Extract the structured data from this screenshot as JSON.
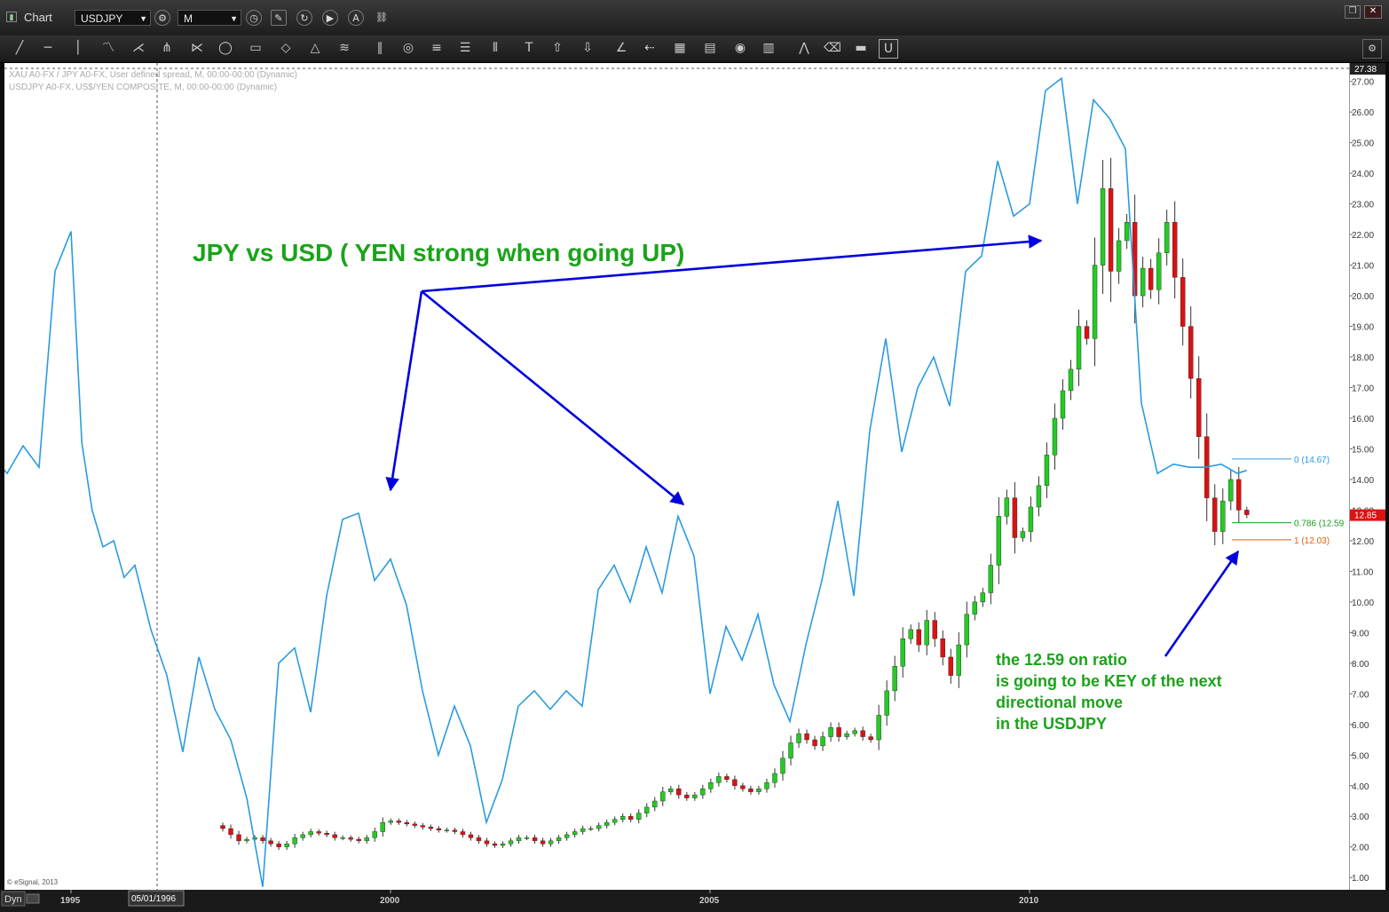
{
  "window": {
    "app_label": "Chart",
    "symbol": "USDJPY",
    "interval": "M"
  },
  "legend": {
    "line1": "XAU A0-FX / JPY A0-FX, User defined spread, M, 00:00-00:00 (Dynamic)",
    "line2": "USDJPY A0-FX, US$/YEN COMPOSITE, M, 00:00-00:00 (Dynamic)"
  },
  "annotations": {
    "headline": "JPY vs USD ( YEN strong when going UP)",
    "note_lines": [
      "the 12.59 on ratio",
      "is going to be KEY of the next",
      "directional move",
      "in the USDJPY"
    ]
  },
  "fib": {
    "level0": "0 (14.67)",
    "level786": "0.786 (12.59",
    "level1": "1 (12.03)"
  },
  "price_tags": {
    "top": "27.38",
    "last": "12.85"
  },
  "copyright": "© eSignal, 2013",
  "footer": {
    "dyn": "Dyn",
    "cursor_date": "05/01/1996"
  },
  "colors": {
    "ratio_line": "#2a9be0",
    "up_candle": "#22cc22",
    "down_candle": "#dd1111",
    "annotation_green": "#1aa31a",
    "arrow_blue": "#0000dd"
  },
  "chart_data": {
    "type": "line",
    "title": "",
    "ylim": [
      0.6,
      27.6
    ],
    "y_ticks": [
      "27.00",
      "26.00",
      "25.00",
      "24.00",
      "23.00",
      "22.00",
      "21.00",
      "20.00",
      "19.00",
      "18.00",
      "17.00",
      "16.00",
      "15.00",
      "14.00",
      "13.00",
      "12.00",
      "11.00",
      "10.00",
      "9.00",
      "8.00",
      "7.00",
      "6.00",
      "5.00",
      "4.00",
      "3.00",
      "2.00",
      "1.00"
    ],
    "x_ticks": [
      "1995",
      "2000",
      "2005",
      "2010"
    ],
    "series": [
      {
        "type": "line",
        "x": [
          1993.0,
          1993.25,
          1993.5,
          1993.75,
          1994.0,
          1994.25,
          1994.5,
          1994.75,
          1995.0,
          1995.17,
          1995.33,
          1995.5,
          1995.67,
          1995.83,
          1996.0,
          1996.25,
          1996.5,
          1996.75,
          1997.0,
          1997.25,
          1997.5,
          1997.75,
          1998.0,
          1998.25,
          1998.5,
          1998.75,
          1999.0,
          1999.25,
          1999.5,
          1999.75,
          2000.0,
          2000.25,
          2000.5,
          2000.75,
          2001.0,
          2001.25,
          2001.5,
          2001.75,
          2002.0,
          2002.25,
          2002.5,
          2002.75,
          2003.0,
          2003.25,
          2003.5,
          2003.75,
          2004.0,
          2004.25,
          2004.5,
          2004.75,
          2005.0,
          2005.25,
          2005.5,
          2005.75,
          2006.0,
          2006.25,
          2006.5,
          2006.75,
          2007.0,
          2007.25,
          2007.5,
          2007.75,
          2008.0,
          2008.25,
          2008.5,
          2008.75,
          2009.0,
          2009.25,
          2009.5,
          2009.75,
          2010.0,
          2010.25,
          2010.5,
          2010.75,
          2011.0,
          2011.25,
          2011.5,
          2011.75,
          2012.0,
          2012.25,
          2012.5,
          2012.75,
          2013.0,
          2013.25,
          2013.4
        ],
        "values": [
          9.9,
          12.4,
          14.0,
          14.8,
          14.2,
          15.1,
          14.4,
          20.8,
          22.1,
          15.2,
          13.0,
          11.8,
          12.0,
          10.8,
          11.2,
          9.1,
          7.6,
          5.1,
          8.2,
          6.5,
          5.5,
          3.6,
          0.7,
          8.0,
          8.5,
          6.4,
          10.2,
          12.7,
          12.9,
          10.7,
          11.4,
          9.9,
          7.1,
          5.0,
          6.6,
          5.3,
          2.8,
          4.2,
          6.6,
          7.1,
          6.5,
          7.1,
          6.6,
          10.4,
          11.2,
          10.0,
          11.8,
          10.3,
          12.8,
          11.5,
          7.0,
          9.2,
          8.1,
          9.6,
          7.3,
          6.1,
          8.6,
          10.7,
          13.3,
          10.2,
          15.6,
          18.6,
          14.9,
          17.0,
          18.0,
          16.4,
          20.8,
          21.3,
          24.4,
          22.6,
          23.0,
          26.7,
          27.1,
          23.0,
          26.4,
          25.8,
          24.8,
          16.5,
          14.2,
          14.5,
          14.4,
          14.4,
          14.5,
          14.2,
          14.3
        ]
      },
      {
        "type": "candlestick",
        "x_start": 1997.25,
        "x_end": 2013.4,
        "closes": [
          2.7,
          2.6,
          2.4,
          2.2,
          2.25,
          2.3,
          2.2,
          2.1,
          2.0,
          2.1,
          2.3,
          2.4,
          2.5,
          2.45,
          2.4,
          2.3,
          2.3,
          2.25,
          2.2,
          2.3,
          2.5,
          2.8,
          2.85,
          2.8,
          2.75,
          2.7,
          2.65,
          2.6,
          2.55,
          2.55,
          2.5,
          2.4,
          2.3,
          2.2,
          2.1,
          2.05,
          2.1,
          2.2,
          2.3,
          2.3,
          2.2,
          2.1,
          2.2,
          2.3,
          2.4,
          2.5,
          2.6,
          2.6,
          2.7,
          2.8,
          2.9,
          3.0,
          2.9,
          3.1,
          3.3,
          3.5,
          3.8,
          3.9,
          3.7,
          3.6,
          3.7,
          3.9,
          4.1,
          4.3,
          4.2,
          4.0,
          3.9,
          3.8,
          3.9,
          4.1,
          4.4,
          4.9,
          5.4,
          5.7,
          5.5,
          5.3,
          5.6,
          5.9,
          5.6,
          5.7,
          5.8,
          5.6,
          5.5,
          6.3,
          7.1,
          7.9,
          8.8,
          9.1,
          8.6,
          9.4,
          8.8,
          8.2,
          7.6,
          8.6,
          9.6,
          10.0,
          10.3,
          11.2,
          12.8,
          13.4,
          12.1,
          12.3,
          13.1,
          13.8,
          14.8,
          16.0,
          16.9,
          17.6,
          19.0,
          18.6,
          21.0,
          23.5,
          20.8,
          21.8,
          22.4,
          20.0,
          20.9,
          20.2,
          21.4,
          22.4,
          20.6,
          19.0,
          17.3,
          15.4,
          13.4,
          12.3,
          13.3,
          14.0,
          13.0,
          12.85
        ]
      }
    ],
    "fibonacci": [
      {
        "level": "0",
        "value": 14.67
      },
      {
        "level": "0.786",
        "value": 12.59
      },
      {
        "level": "1",
        "value": 12.03
      }
    ]
  }
}
